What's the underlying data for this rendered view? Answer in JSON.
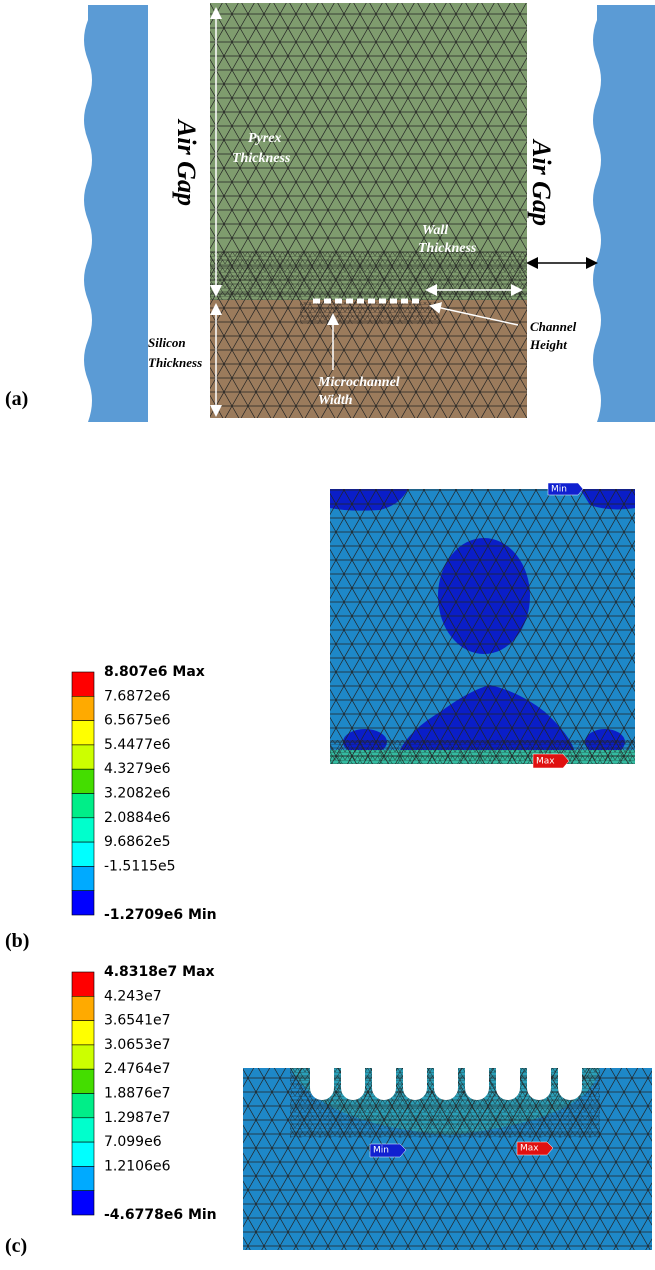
{
  "panel_a": {
    "label": "(a)",
    "air_gap_left": "Air Gap",
    "air_gap_right": "Air Gap",
    "pyrex_thickness": [
      "Pyrex",
      "Thickness"
    ],
    "wall_thickness": [
      "Wall",
      "Thickness"
    ],
    "channel_height": [
      "Channel",
      "Height"
    ],
    "silicon_thickness": [
      "Silicon",
      "Thickness"
    ],
    "microchannel_width": [
      "Microchannel",
      "Width"
    ]
  },
  "panel_b": {
    "label": "(b)",
    "min_tag": "Min",
    "max_tag": "Max",
    "legend": {
      "labels": [
        "8.807e6 Max",
        "7.6872e6",
        "6.5675e6",
        "5.4477e6",
        "4.3279e6",
        "3.2082e6",
        "2.0884e6",
        "9.6862e5",
        "-1.5115e5",
        "-1.2709e6 Min"
      ],
      "colors": [
        "#ff0000",
        "#ffaa00",
        "#ffff00",
        "#ccff00",
        "#44dd00",
        "#00ee88",
        "#00ffcc",
        "#00ffff",
        "#00aaff",
        "#0000ff"
      ]
    }
  },
  "panel_c": {
    "label": "(c)",
    "min_tag": "Min",
    "max_tag": "Max",
    "legend": {
      "labels": [
        "4.8318e7 Max",
        "4.243e7",
        "3.6541e7",
        "3.0653e7",
        "2.4764e7",
        "1.8876e7",
        "1.2987e7",
        "7.099e6",
        "1.2106e6",
        "-4.6778e6 Min"
      ],
      "colors": [
        "#ff0000",
        "#ffaa00",
        "#ffff00",
        "#ccff00",
        "#44dd00",
        "#00ee88",
        "#00ffcc",
        "#00ffff",
        "#00aaff",
        "#0000ff"
      ]
    }
  }
}
